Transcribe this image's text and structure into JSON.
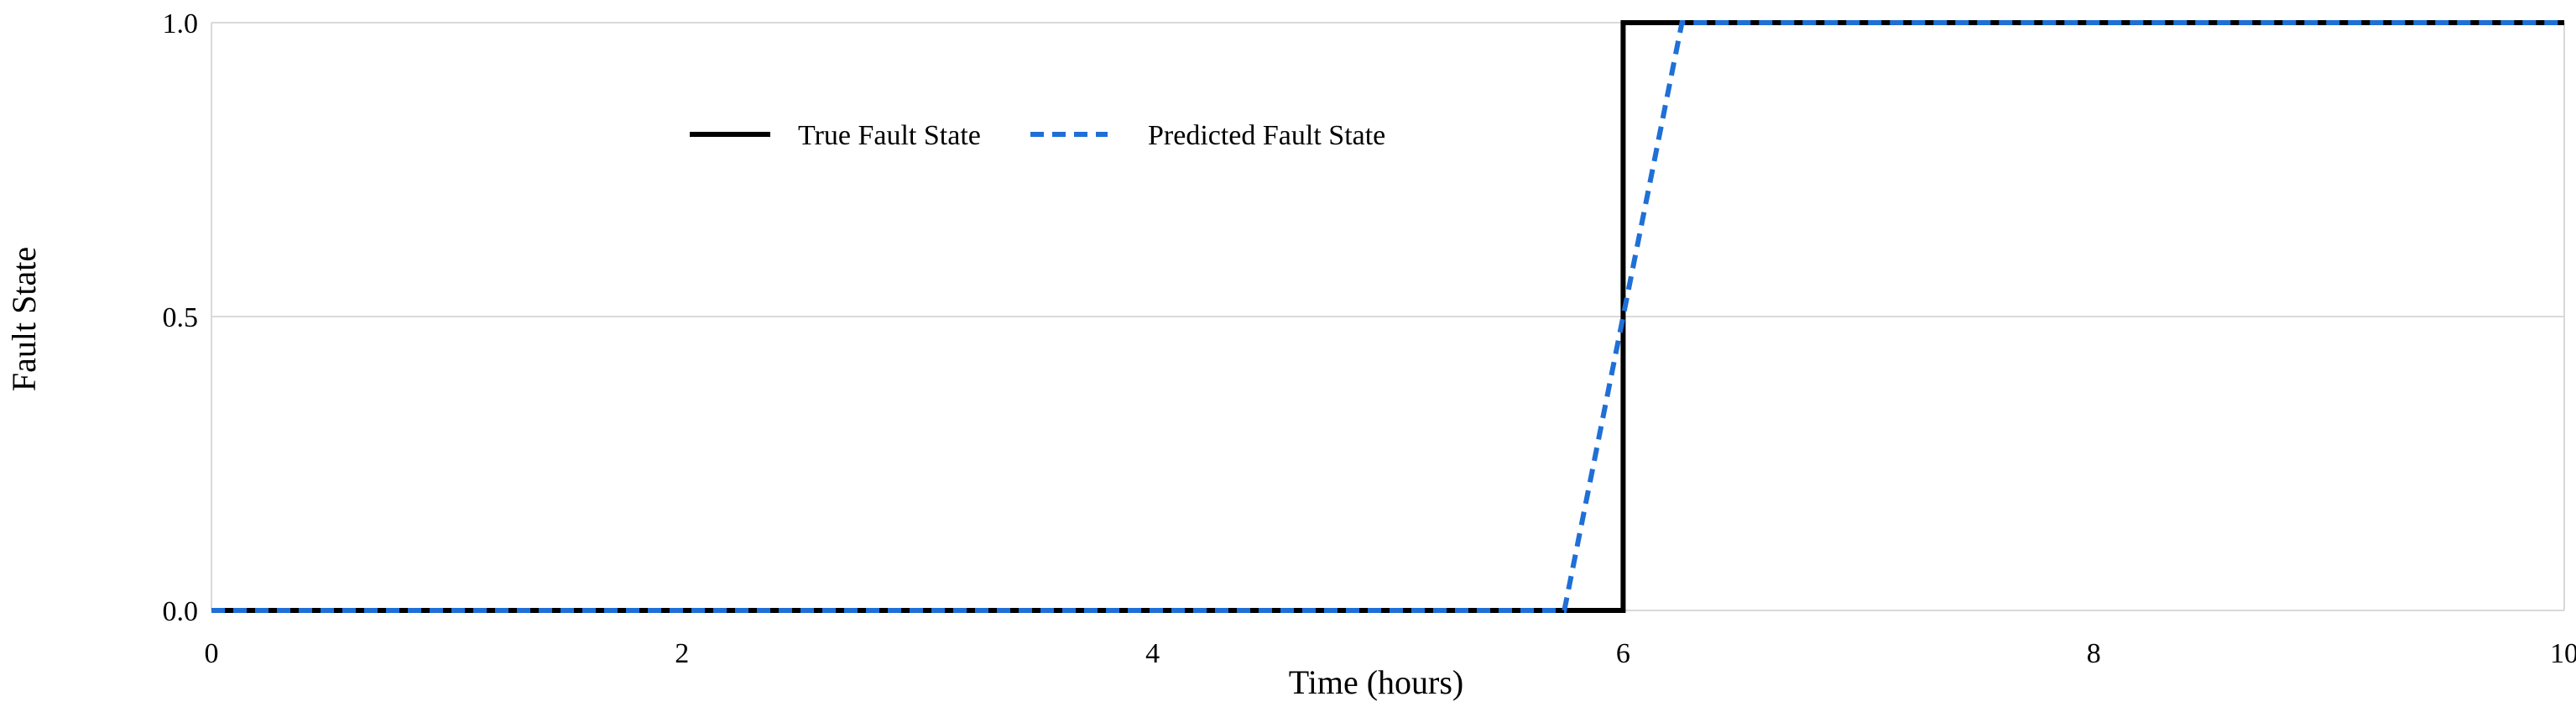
{
  "chart_data": {
    "type": "line",
    "title": "",
    "xlabel": "Time (hours)",
    "ylabel": "Fault State",
    "xlim": [
      0,
      10
    ],
    "ylim": [
      0,
      1
    ],
    "x_ticks": [
      "0",
      "2",
      "4",
      "6",
      "8",
      "10"
    ],
    "y_ticks": [
      "0.0",
      "0.5",
      "1.0"
    ],
    "grid": "horizontal",
    "legend_position": "top-center",
    "series": [
      {
        "name": "True Fault State",
        "style": "solid",
        "color": "#000000",
        "points": [
          [
            0,
            0
          ],
          [
            6,
            0
          ],
          [
            6,
            1
          ],
          [
            10,
            1
          ]
        ]
      },
      {
        "name": "Predicted Fault State",
        "style": "dashed",
        "color": "#1f6fd6",
        "points": [
          [
            0,
            0
          ],
          [
            5.75,
            0
          ],
          [
            6.25,
            1
          ],
          [
            10,
            1
          ]
        ]
      }
    ]
  }
}
